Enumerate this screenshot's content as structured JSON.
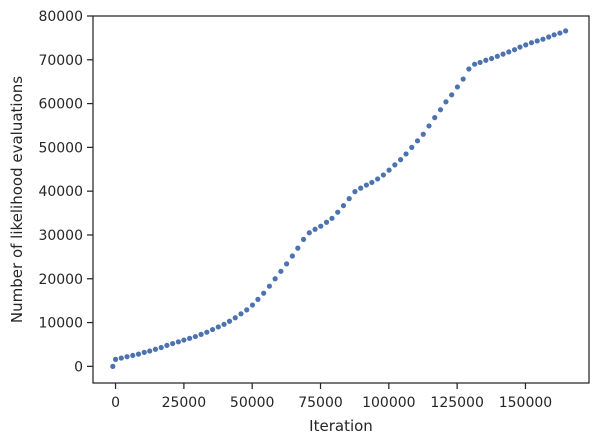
{
  "chart_data": {
    "type": "scatter",
    "title": "",
    "xlabel": "Iteration",
    "ylabel": "Number of likelihood evaluations",
    "xlim": [
      -8250,
      173250
    ],
    "ylim": [
      -3800,
      80000
    ],
    "xticks": [
      0,
      25000,
      50000,
      75000,
      100000,
      125000,
      150000
    ],
    "xtick_labels": [
      "0",
      "25000",
      "50000",
      "75000",
      "100000",
      "125000",
      "150000"
    ],
    "yticks": [
      0,
      10000,
      20000,
      30000,
      40000,
      50000,
      60000,
      70000,
      80000
    ],
    "ytick_labels": [
      "0",
      "10000",
      "20000",
      "30000",
      "40000",
      "50000",
      "60000",
      "70000",
      "80000"
    ],
    "grid": false,
    "marker_color": "#4c72b0",
    "series": [
      {
        "x": [
          -1000,
          0,
          2100,
          4200,
          6300,
          8400,
          10500,
          12500,
          14600,
          16700,
          18800,
          20900,
          23000,
          25000,
          27100,
          29200,
          31300,
          33400,
          35500,
          37600,
          39700,
          41700,
          43800,
          45900,
          48000,
          50100,
          52100,
          54200,
          56300,
          58400,
          60500,
          62600,
          64700,
          66700,
          68800,
          70900,
          73000,
          75100,
          77200,
          79200,
          81300,
          83400,
          85500,
          87600,
          89700,
          91800,
          93800,
          95900,
          98000,
          100100,
          102200,
          104300,
          106300,
          108400,
          110500,
          112600,
          114700,
          116800,
          118900,
          120900,
          123000,
          125100,
          127200,
          129300,
          131400,
          133400,
          135500,
          137600,
          139700,
          141800,
          143900,
          146000,
          148000,
          150100,
          152200,
          154300,
          156400,
          158500,
          160500,
          162600,
          164700
        ],
        "y": [
          0,
          1600,
          1900,
          2200,
          2500,
          2800,
          3200,
          3500,
          3900,
          4300,
          4800,
          5200,
          5600,
          6000,
          6400,
          6800,
          7300,
          7800,
          8400,
          9000,
          9600,
          10300,
          11100,
          12000,
          12900,
          14000,
          15300,
          16700,
          18300,
          20000,
          21700,
          23400,
          25200,
          27000,
          29000,
          30500,
          31300,
          32000,
          32900,
          33800,
          35200,
          36700,
          38300,
          39900,
          40700,
          41400,
          42000,
          42800,
          43700,
          44800,
          46000,
          47200,
          48500,
          50000,
          51500,
          53000,
          54900,
          56800,
          58600,
          60400,
          62000,
          63800,
          65600,
          67900,
          69000,
          69400,
          69900,
          70300,
          70800,
          71300,
          71800,
          72300,
          72900,
          73400,
          73900,
          74300,
          74700,
          75200,
          75700,
          76100,
          76600
        ]
      }
    ]
  }
}
